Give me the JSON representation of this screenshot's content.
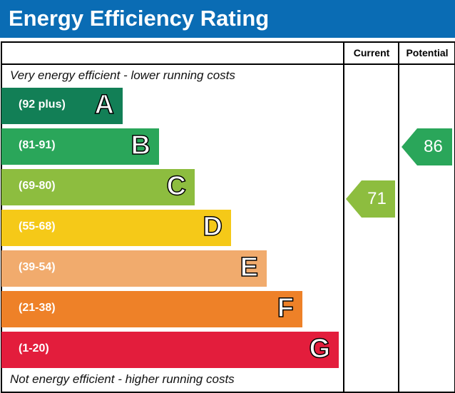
{
  "chart_data": {
    "type": "table",
    "title": "Energy Efficiency Rating",
    "columns": [
      "Current",
      "Potential"
    ],
    "top_note": "Very energy efficient - lower running costs",
    "bottom_note": "Not energy efficient - higher running costs",
    "bands": [
      {
        "letter": "A",
        "range": "(92 plus)",
        "color": "#127f56"
      },
      {
        "letter": "B",
        "range": "(81-91)",
        "color": "#2aa65a"
      },
      {
        "letter": "C",
        "range": "(69-80)",
        "color": "#8dbd3f"
      },
      {
        "letter": "D",
        "range": "(55-68)",
        "color": "#f5c918"
      },
      {
        "letter": "E",
        "range": "(39-54)",
        "color": "#f1ab6d"
      },
      {
        "letter": "F",
        "range": "(21-38)",
        "color": "#ee8128"
      },
      {
        "letter": "G",
        "range": "(1-20)",
        "color": "#e31d3c"
      }
    ],
    "current": {
      "value": "71",
      "band": "C",
      "color": "#8dbd3f"
    },
    "potential": {
      "value": "86",
      "band": "B",
      "color": "#2aa65a"
    }
  }
}
